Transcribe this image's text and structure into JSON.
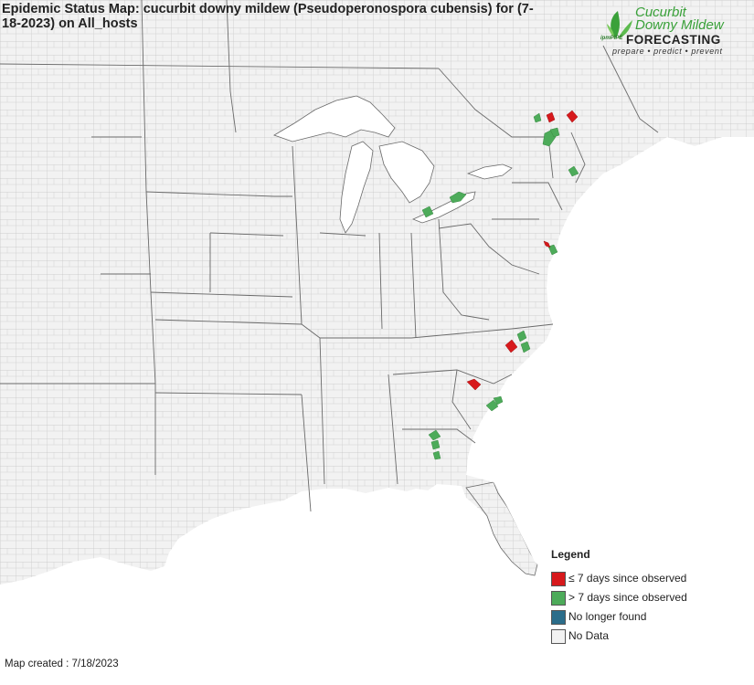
{
  "title": "Epidemic Status Map: cucurbit downy mildew (Pseudoperonospora cubensis) for (7-18-2023) on All_hosts",
  "logo": {
    "line1": "Cucurbit",
    "line2": "Downy Mildew",
    "line3": "FORECASTING",
    "tagline": "prepare • predict • prevent",
    "mark": "ipmPIPE",
    "leaf_color": "#3aa13a"
  },
  "colors": {
    "land": "#f2f2f2",
    "county_border": "#c4c4c4",
    "state_border": "#6a6a6a",
    "water": "#ffffff",
    "recent": "#d7191c",
    "older": "#4dab5a",
    "no_longer": "#2b6d8a",
    "no_data": "#f2f2f2"
  },
  "legend": {
    "title": "Legend",
    "items": [
      {
        "label": "≤ 7 days since observed",
        "color": "#d7191c"
      },
      {
        "label": "> 7 days since observed",
        "color": "#4dab5a"
      },
      {
        "label": "No longer found",
        "color": "#2b6d8a"
      },
      {
        "label": "No Data",
        "color": "#f2f2f2"
      }
    ]
  },
  "footer": "Map created : 7/18/2023"
}
